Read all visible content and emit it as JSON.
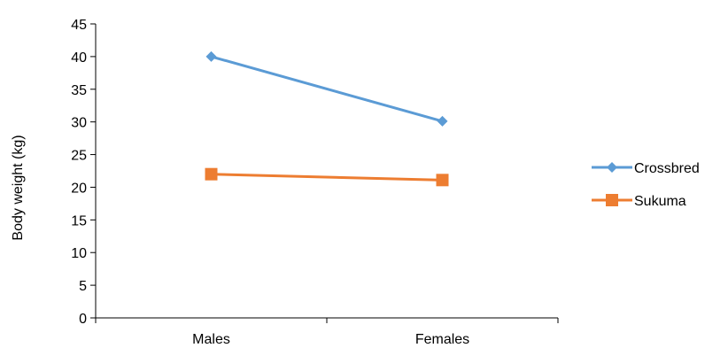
{
  "chart_data": {
    "type": "line",
    "title": "",
    "xlabel": "",
    "ylabel": "Body weight (kg)",
    "categories": [
      "Males",
      "Females"
    ],
    "ylim": [
      0,
      45
    ],
    "yticks": [
      0,
      5,
      10,
      15,
      20,
      25,
      30,
      35,
      40,
      45
    ],
    "grid": false,
    "legend_position": "right",
    "series": [
      {
        "name": "Crossbred",
        "values": [
          40,
          30.1
        ],
        "color": "#5B9BD5",
        "marker": "diamond"
      },
      {
        "name": "Sukuma",
        "values": [
          22,
          21.1
        ],
        "color": "#ED7D31",
        "marker": "square"
      }
    ]
  }
}
